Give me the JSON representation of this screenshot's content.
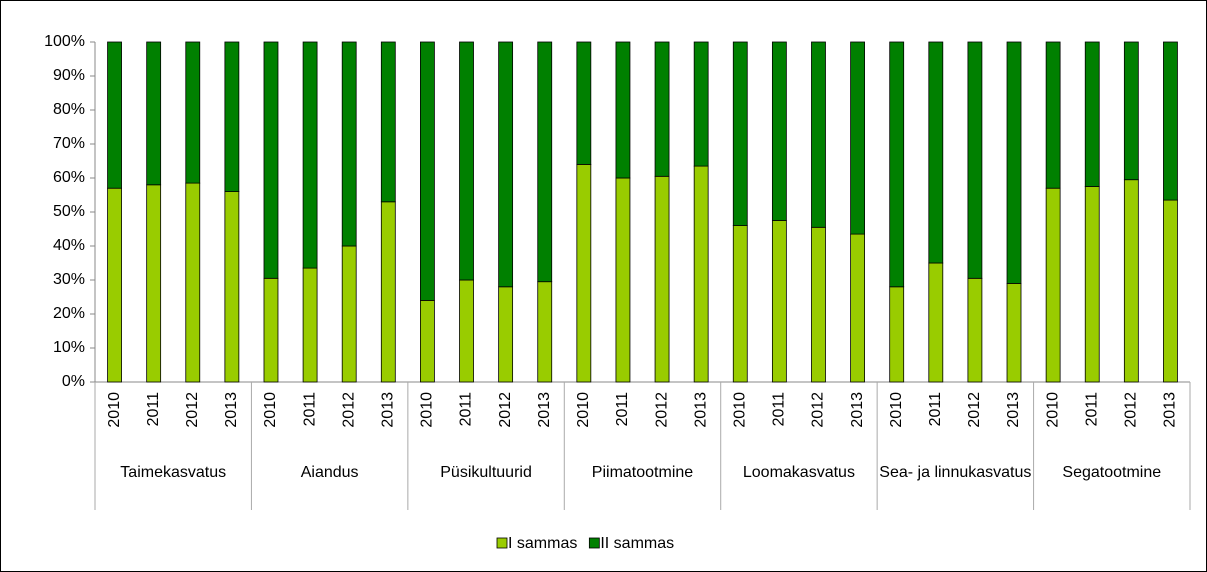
{
  "chart_data": {
    "type": "stacked_bar",
    "groups": [
      {
        "name": "Taimekasvatus",
        "categories": [
          "2010",
          "2011",
          "2012",
          "2013"
        ]
      },
      {
        "name": "Aiandus",
        "categories": [
          "2010",
          "2011",
          "2012",
          "2013"
        ]
      },
      {
        "name": "Püsikultuurid",
        "categories": [
          "2010",
          "2011",
          "2012",
          "2013"
        ]
      },
      {
        "name": "Piimatootmine",
        "categories": [
          "2010",
          "2011",
          "2012",
          "2013"
        ]
      },
      {
        "name": "Loomakasvatus",
        "categories": [
          "2010",
          "2011",
          "2012",
          "2013"
        ]
      },
      {
        "name": "Sea- ja linnukasvatus",
        "categories": [
          "2010",
          "2011",
          "2012",
          "2013"
        ]
      },
      {
        "name": "Segatootmine",
        "categories": [
          "2010",
          "2011",
          "2012",
          "2013"
        ]
      }
    ],
    "series": [
      {
        "name": "I sammas",
        "color": "#99cc00",
        "values": [
          57,
          58,
          58.5,
          56,
          30.5,
          33.5,
          40,
          53,
          24,
          30,
          28,
          29.5,
          64,
          60,
          60.5,
          63.5,
          46,
          47.5,
          45.5,
          43.5,
          28,
          35,
          30.5,
          29,
          57,
          57.5,
          59.5,
          53.5
        ]
      },
      {
        "name": "II sammas",
        "color": "#008000",
        "values": [
          43,
          42,
          41.5,
          44,
          69.5,
          66.5,
          60,
          47,
          76,
          70,
          72,
          70.5,
          36,
          40,
          39.5,
          36.5,
          54,
          52.5,
          54.5,
          56.5,
          72,
          65,
          69.5,
          71,
          43,
          42.5,
          40.5,
          46.5
        ]
      }
    ],
    "ylim": [
      0,
      100
    ],
    "yticks": [
      {
        "value": 0,
        "label": "0%"
      },
      {
        "value": 10,
        "label": "10%"
      },
      {
        "value": 20,
        "label": "20%"
      },
      {
        "value": 30,
        "label": "30%"
      },
      {
        "value": 40,
        "label": "40%"
      },
      {
        "value": 50,
        "label": "50%"
      },
      {
        "value": 60,
        "label": "60%"
      },
      {
        "value": 70,
        "label": "70%"
      },
      {
        "value": 80,
        "label": "80%"
      },
      {
        "value": 90,
        "label": "90%"
      },
      {
        "value": 100,
        "label": "100%"
      }
    ],
    "legend": "bottom"
  }
}
